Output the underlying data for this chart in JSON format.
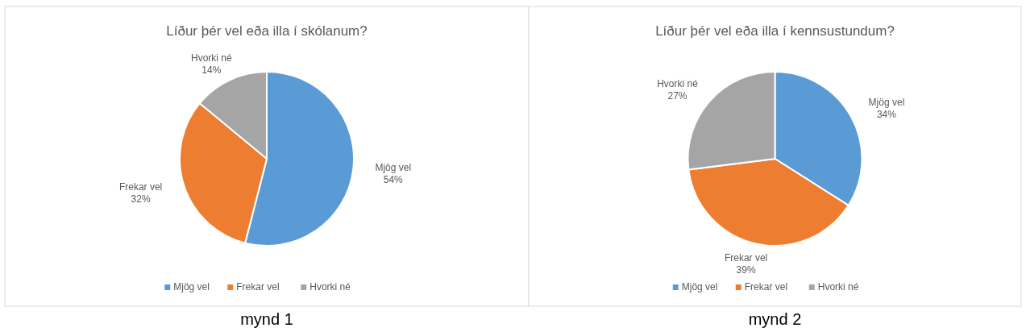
{
  "chart_data": [
    {
      "type": "pie",
      "title": "Líður þér vel eða illa í skólanum?",
      "categories": [
        "Mjög vel",
        "Frekar vel",
        "Hvorki né"
      ],
      "values": [
        54,
        32,
        14
      ],
      "value_labels": [
        "54%",
        "32%",
        "14%"
      ],
      "colors": [
        "#5b9bd5",
        "#ed7d31",
        "#a5a5a5"
      ],
      "legend": "bottom",
      "annotations": [
        "mynd 1"
      ]
    },
    {
      "type": "pie",
      "title": "Líður þér vel eða illa í kennsustundum?",
      "categories": [
        "Mjög vel",
        "Frekar vel",
        "Hvorki né"
      ],
      "values": [
        34,
        39,
        27
      ],
      "value_labels": [
        "34%",
        "39%",
        "27%"
      ],
      "colors": [
        "#5b9bd5",
        "#ed7d31",
        "#a5a5a5"
      ],
      "legend": "bottom",
      "annotations": [
        "mynd 2"
      ]
    }
  ]
}
